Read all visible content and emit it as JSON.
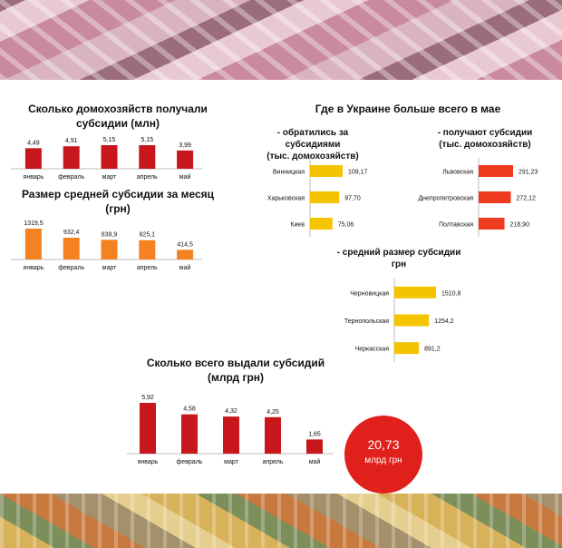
{
  "households": {
    "title": "Сколько домохозяйств получали субсидии (млн)",
    "title_line1": "Сколько домохозяйств получали",
    "title_line2": "субсидии (млн)"
  },
  "avg_subsidy": {
    "title_line1": "Размер средней субсидии за месяц",
    "title_line2": "(грн)"
  },
  "regions": {
    "title": "Где в Украине больше всего в мае",
    "applied_line1": "- обратились  за субсидиями",
    "applied_line2": "(тыс. домохозяйств)",
    "receive_line1": "- получают  субсидии",
    "receive_line2": "(тыс. домохозяйств)",
    "avg_line1": "- средний размер субсидии",
    "avg_line2": "грн"
  },
  "total": {
    "title_line1": "Сколько всего выдали субсидий",
    "title_line2": "(млрд грн)",
    "sum_value": "20,73",
    "sum_unit": "млрд грн"
  },
  "colors": {
    "red": "#c8161d",
    "orange": "#f58220",
    "yellow": "#f5c400",
    "red_orange": "#ee3a1f",
    "circle": "#e0201b"
  },
  "chart_data": [
    {
      "type": "bar",
      "title": "Сколько домохозяйств получали субсидии (млн)",
      "categories": [
        "январь",
        "февраль",
        "март",
        "апрель",
        "май"
      ],
      "values": [
        4.49,
        4.91,
        5.15,
        5.15,
        3.99
      ],
      "labels": [
        "4,49",
        "4,91",
        "5,15",
        "5,15",
        "3,99"
      ],
      "color": "#c8161d"
    },
    {
      "type": "bar",
      "title": "Размер средней субсидии за месяц (грн)",
      "categories": [
        "январь",
        "февраль",
        "март",
        "апрель",
        "май"
      ],
      "values": [
        1319.5,
        932.4,
        839.9,
        825.1,
        414.5
      ],
      "labels": [
        "1319,5",
        "932,4",
        "839,9",
        "825,1",
        "414,5"
      ],
      "color": "#f58220"
    },
    {
      "type": "bar",
      "orientation": "horizontal",
      "title": "- обратились  за субсидиями (тыс. домохозяйств)",
      "categories": [
        "Винницкая",
        "Харьковская",
        "Киев"
      ],
      "values": [
        109.17,
        97.7,
        75.06
      ],
      "labels": [
        "109,17",
        "97,70",
        "75,06"
      ],
      "color": "#f5c400"
    },
    {
      "type": "bar",
      "orientation": "horizontal",
      "title": "- получают  субсидии (тыс. домохозяйств)",
      "categories": [
        "Львовская",
        "Днепропетровская",
        "Полтавская"
      ],
      "values": [
        291.23,
        272.12,
        218.9
      ],
      "labels": [
        "291,23",
        "272,12",
        "218,90"
      ],
      "color": "#ee3a1f"
    },
    {
      "type": "bar",
      "orientation": "horizontal",
      "title": "- средний размер субсидии грн",
      "categories": [
        "Черновицкая",
        "Тернопольская",
        "Черкасская"
      ],
      "values": [
        1510.8,
        1254.2,
        891.2
      ],
      "labels": [
        "1510,8",
        "1254,2",
        "891,2"
      ],
      "color": "#f5c400"
    },
    {
      "type": "bar",
      "title": "Сколько всего выдали субсидий (млрд грн)",
      "categories": [
        "январь",
        "февраль",
        "март",
        "апрель",
        "май"
      ],
      "values": [
        5.92,
        4.58,
        4.32,
        4.25,
        1.65
      ],
      "labels": [
        "5,92",
        "4,58",
        "4,32",
        "4,25",
        "1,65"
      ],
      "color": "#c8161d"
    }
  ]
}
